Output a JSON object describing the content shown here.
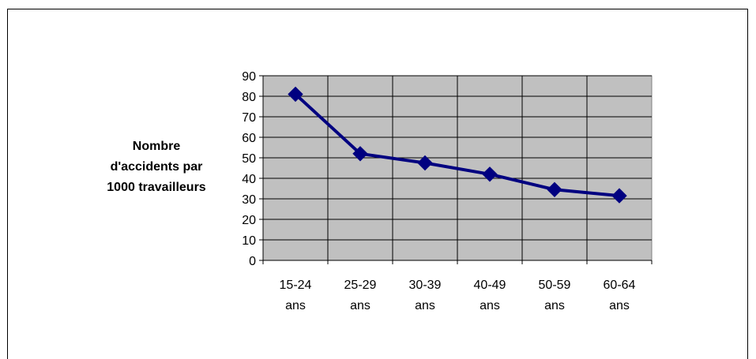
{
  "chart_data": {
    "type": "line",
    "title": "",
    "xlabel": "",
    "ylabel_lines": [
      "Nombre",
      "d'accidents par",
      "1000 travailleurs"
    ],
    "categories": [
      [
        "15-24",
        "ans"
      ],
      [
        "25-29",
        "ans"
      ],
      [
        "30-39",
        "ans"
      ],
      [
        "40-49",
        "ans"
      ],
      [
        "50-59",
        "ans"
      ],
      [
        "60-64",
        "ans"
      ]
    ],
    "values": [
      81,
      52,
      47.5,
      42,
      34.5,
      31.5
    ],
    "ylim": [
      0,
      90
    ],
    "yticks": [
      "0",
      "10",
      "20",
      "30",
      "40",
      "50",
      "60",
      "70",
      "80",
      "90"
    ],
    "grid": true,
    "plot_background": "#C0C0C0",
    "line_color": "#000080",
    "marker": "diamond"
  }
}
